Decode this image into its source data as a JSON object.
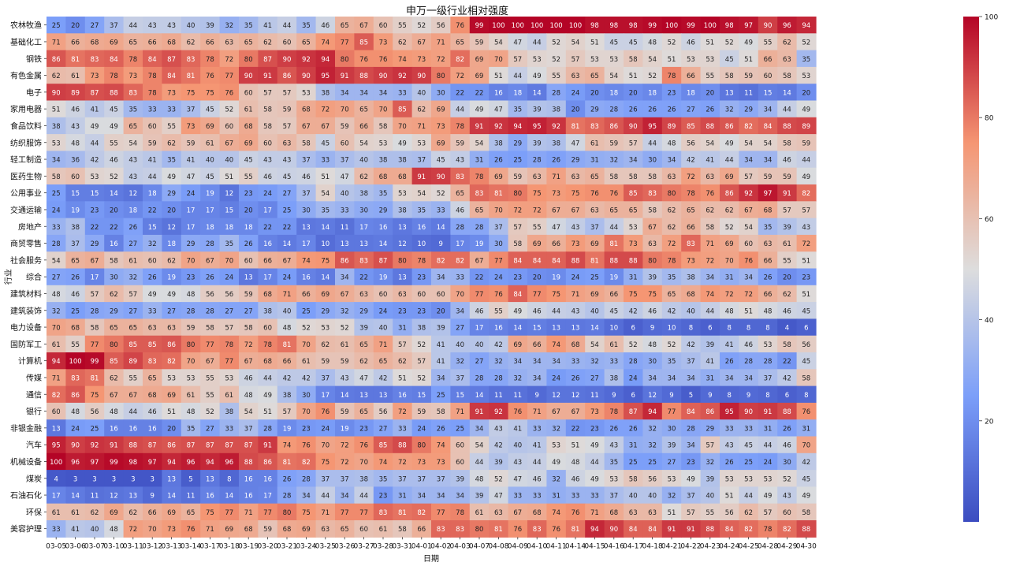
{
  "chart_data": {
    "type": "heatmap",
    "title": "申万一级行业相对强度",
    "xlabel": "日期",
    "ylabel": "行业",
    "x": [
      "03-05",
      "03-06",
      "03-07",
      "03-10",
      "03-11",
      "03-12",
      "03-13",
      "03-14",
      "03-17",
      "03-18",
      "03-19",
      "03-20",
      "03-21",
      "03-24",
      "03-25",
      "03-26",
      "03-27",
      "03-28",
      "03-31",
      "04-01",
      "04-02",
      "04-03",
      "04-07",
      "04-08",
      "04-09",
      "04-10",
      "04-11",
      "04-14",
      "04-15",
      "04-16",
      "04-17",
      "04-18",
      "04-21",
      "04-22",
      "04-23",
      "04-24",
      "04-25",
      "04-28",
      "04-29",
      "04-30"
    ],
    "y": [
      "农林牧渔",
      "基础化工",
      "钢铁",
      "有色金属",
      "电子",
      "家用电器",
      "食品饮料",
      "纺织服饰",
      "轻工制造",
      "医药生物",
      "公用事业",
      "交通运输",
      "房地产",
      "商贸零售",
      "社会服务",
      "综合",
      "建筑材料",
      "建筑装饰",
      "电力设备",
      "国防军工",
      "计算机",
      "传媒",
      "通信",
      "银行",
      "非银金融",
      "汽车",
      "机械设备",
      "煤炭",
      "石油石化",
      "环保",
      "美容护理"
    ],
    "values": [
      [
        25,
        20,
        27,
        37,
        44,
        43,
        43,
        40,
        39,
        32,
        35,
        41,
        44,
        35,
        46,
        65,
        67,
        60,
        55,
        52,
        56,
        76,
        99,
        100,
        100,
        100,
        100,
        100,
        98,
        98,
        98,
        99,
        100,
        99,
        100,
        98,
        97,
        90,
        96,
        94
      ],
      [
        71,
        66,
        68,
        69,
        65,
        66,
        68,
        62,
        66,
        63,
        65,
        62,
        60,
        65,
        74,
        77,
        85,
        73,
        62,
        67,
        71,
        65,
        59,
        54,
        47,
        44,
        52,
        54,
        51,
        45,
        45,
        48,
        52,
        46,
        51,
        52,
        49,
        55,
        62,
        52
      ],
      [
        86,
        81,
        83,
        84,
        78,
        84,
        87,
        83,
        78,
        72,
        80,
        87,
        90,
        92,
        94,
        80,
        76,
        76,
        74,
        73,
        72,
        82,
        69,
        70,
        57,
        53,
        52,
        57,
        53,
        53,
        58,
        54,
        51,
        53,
        53,
        45,
        51,
        66,
        63,
        35
      ],
      [
        62,
        61,
        73,
        78,
        73,
        78,
        84,
        81,
        76,
        77,
        90,
        91,
        86,
        90,
        95,
        91,
        88,
        90,
        92,
        90,
        80,
        72,
        69,
        51,
        44,
        49,
        55,
        63,
        65,
        54,
        51,
        52,
        78,
        66,
        55,
        58,
        59,
        60,
        58,
        53
      ],
      [
        90,
        89,
        87,
        88,
        83,
        78,
        73,
        75,
        75,
        76,
        60,
        57,
        57,
        53,
        38,
        34,
        34,
        34,
        33,
        40,
        30,
        22,
        22,
        16,
        18,
        14,
        28,
        24,
        20,
        18,
        20,
        18,
        23,
        18,
        20,
        13,
        11,
        15,
        14,
        20
      ],
      [
        51,
        46,
        41,
        45,
        35,
        33,
        33,
        37,
        45,
        52,
        61,
        58,
        59,
        68,
        72,
        70,
        65,
        70,
        85,
        62,
        69,
        44,
        49,
        47,
        35,
        39,
        38,
        20,
        29,
        28,
        26,
        26,
        26,
        27,
        26,
        32,
        29,
        34,
        44,
        49
      ],
      [
        38,
        43,
        49,
        49,
        65,
        60,
        55,
        73,
        69,
        60,
        68,
        58,
        57,
        67,
        67,
        59,
        66,
        58,
        70,
        71,
        73,
        78,
        91,
        92,
        94,
        95,
        92,
        81,
        83,
        86,
        90,
        95,
        89,
        85,
        88,
        86,
        82,
        84,
        88,
        89
      ],
      [
        53,
        48,
        44,
        55,
        54,
        59,
        62,
        59,
        61,
        67,
        69,
        60,
        63,
        58,
        45,
        60,
        54,
        53,
        49,
        53,
        69,
        59,
        54,
        38,
        29,
        39,
        38,
        47,
        61,
        59,
        57,
        44,
        48,
        56,
        54,
        49,
        54,
        54,
        58,
        59
      ],
      [
        34,
        36,
        42,
        46,
        43,
        41,
        35,
        41,
        40,
        40,
        45,
        43,
        43,
        37,
        33,
        37,
        40,
        38,
        38,
        37,
        45,
        43,
        31,
        26,
        25,
        28,
        26,
        29,
        31,
        32,
        34,
        30,
        34,
        42,
        41,
        44,
        34,
        34,
        46,
        44
      ],
      [
        58,
        60,
        53,
        52,
        43,
        44,
        49,
        47,
        45,
        51,
        55,
        46,
        45,
        46,
        51,
        47,
        62,
        68,
        68,
        91,
        90,
        83,
        78,
        69,
        59,
        63,
        71,
        63,
        65,
        58,
        58,
        58,
        63,
        72,
        63,
        69,
        57,
        59,
        59,
        49
      ],
      [
        25,
        15,
        15,
        14,
        12,
        18,
        29,
        24,
        19,
        12,
        23,
        24,
        27,
        37,
        54,
        40,
        38,
        35,
        53,
        54,
        52,
        65,
        83,
        81,
        80,
        75,
        73,
        75,
        76,
        76,
        85,
        83,
        80,
        78,
        76,
        86,
        92,
        97,
        91,
        82
      ],
      [
        24,
        19,
        23,
        20,
        18,
        22,
        20,
        17,
        17,
        15,
        20,
        17,
        25,
        30,
        35,
        33,
        30,
        29,
        38,
        35,
        33,
        46,
        65,
        70,
        72,
        72,
        67,
        67,
        63,
        65,
        65,
        58,
        62,
        65,
        62,
        62,
        67,
        68,
        57,
        57
      ],
      [
        33,
        38,
        22,
        22,
        26,
        15,
        12,
        17,
        18,
        18,
        18,
        22,
        22,
        13,
        14,
        11,
        17,
        16,
        13,
        16,
        14,
        28,
        28,
        37,
        57,
        55,
        47,
        43,
        37,
        44,
        53,
        67,
        62,
        66,
        58,
        52,
        54,
        35,
        39,
        43
      ],
      [
        28,
        37,
        29,
        16,
        27,
        32,
        18,
        29,
        28,
        35,
        26,
        16,
        14,
        17,
        10,
        13,
        13,
        14,
        12,
        10,
        9,
        17,
        19,
        30,
        58,
        69,
        66,
        73,
        69,
        81,
        73,
        63,
        72,
        83,
        71,
        69,
        60,
        63,
        61,
        72
      ],
      [
        54,
        65,
        67,
        58,
        61,
        60,
        62,
        70,
        67,
        70,
        60,
        66,
        67,
        74,
        75,
        86,
        83,
        87,
        80,
        78,
        82,
        82,
        67,
        77,
        84,
        84,
        84,
        88,
        81,
        88,
        88,
        80,
        78,
        73,
        72,
        70,
        76,
        66,
        55,
        51
      ],
      [
        27,
        26,
        17,
        30,
        32,
        26,
        19,
        23,
        26,
        24,
        13,
        17,
        24,
        16,
        14,
        34,
        22,
        19,
        13,
        23,
        34,
        33,
        22,
        24,
        23,
        20,
        19,
        24,
        25,
        19,
        31,
        39,
        35,
        38,
        34,
        31,
        34,
        26,
        20,
        23
      ],
      [
        48,
        46,
        57,
        62,
        57,
        49,
        49,
        48,
        56,
        56,
        59,
        68,
        71,
        66,
        69,
        67,
        63,
        60,
        63,
        60,
        60,
        70,
        77,
        76,
        84,
        77,
        75,
        71,
        69,
        66,
        75,
        75,
        65,
        68,
        74,
        72,
        72,
        66,
        62,
        51
      ],
      [
        32,
        25,
        28,
        29,
        27,
        33,
        27,
        28,
        28,
        27,
        27,
        38,
        40,
        25,
        29,
        32,
        29,
        24,
        23,
        23,
        20,
        34,
        46,
        55,
        49,
        46,
        44,
        43,
        40,
        45,
        42,
        46,
        42,
        40,
        44,
        48,
        51,
        48,
        46,
        45
      ],
      [
        70,
        68,
        58,
        65,
        65,
        63,
        63,
        59,
        58,
        57,
        58,
        60,
        48,
        52,
        53,
        52,
        39,
        40,
        31,
        38,
        39,
        27,
        17,
        16,
        14,
        15,
        13,
        13,
        14,
        10,
        6,
        9,
        10,
        8,
        6,
        8,
        8,
        8,
        4,
        6
      ],
      [
        61,
        55,
        77,
        80,
        85,
        85,
        86,
        80,
        77,
        78,
        72,
        78,
        81,
        70,
        62,
        61,
        65,
        71,
        57,
        52,
        41,
        40,
        40,
        42,
        69,
        66,
        74,
        68,
        54,
        61,
        52,
        48,
        52,
        42,
        39,
        41,
        46,
        53,
        58,
        56
      ],
      [
        94,
        100,
        99,
        85,
        89,
        83,
        82,
        70,
        67,
        77,
        67,
        68,
        66,
        61,
        59,
        59,
        62,
        65,
        62,
        57,
        41,
        32,
        27,
        32,
        34,
        34,
        34,
        33,
        32,
        33,
        28,
        30,
        35,
        37,
        41,
        26,
        28,
        28,
        22,
        45
      ],
      [
        71,
        83,
        81,
        62,
        55,
        65,
        53,
        53,
        55,
        53,
        46,
        44,
        42,
        42,
        37,
        43,
        47,
        42,
        51,
        52,
        34,
        37,
        28,
        28,
        32,
        34,
        24,
        26,
        27,
        38,
        24,
        34,
        34,
        34,
        31,
        34,
        34,
        37,
        42,
        58
      ],
      [
        82,
        86,
        75,
        67,
        67,
        68,
        69,
        61,
        55,
        61,
        48,
        49,
        38,
        30,
        17,
        14,
        13,
        13,
        16,
        15,
        25,
        15,
        14,
        11,
        11,
        9,
        12,
        12,
        11,
        9,
        6,
        12,
        9,
        5,
        9,
        8,
        9,
        8,
        6,
        8
      ],
      [
        60,
        48,
        56,
        48,
        44,
        46,
        51,
        48,
        52,
        38,
        54,
        51,
        57,
        70,
        76,
        59,
        65,
        56,
        72,
        59,
        58,
        71,
        91,
        92,
        76,
        71,
        67,
        67,
        73,
        78,
        87,
        94,
        77,
        84,
        86,
        95,
        90,
        91,
        88,
        76
      ],
      [
        13,
        24,
        25,
        16,
        16,
        16,
        20,
        35,
        27,
        33,
        37,
        28,
        19,
        23,
        24,
        19,
        23,
        27,
        33,
        24,
        26,
        25,
        34,
        43,
        41,
        33,
        32,
        22,
        23,
        26,
        26,
        32,
        30,
        28,
        29,
        33,
        33,
        31,
        26,
        31
      ],
      [
        95,
        90,
        92,
        91,
        88,
        87,
        86,
        87,
        87,
        87,
        87,
        91,
        74,
        76,
        70,
        72,
        76,
        85,
        88,
        80,
        74,
        60,
        54,
        42,
        40,
        41,
        53,
        51,
        49,
        43,
        31,
        32,
        39,
        34,
        57,
        43,
        45,
        44,
        46,
        70
      ],
      [
        100,
        96,
        97,
        99,
        98,
        97,
        94,
        96,
        94,
        96,
        88,
        86,
        81,
        82,
        75,
        72,
        70,
        74,
        72,
        73,
        73,
        60,
        44,
        39,
        43,
        44,
        49,
        48,
        44,
        35,
        25,
        25,
        27,
        23,
        32,
        26,
        25,
        24,
        30,
        42
      ],
      [
        4,
        3,
        3,
        3,
        3,
        3,
        13,
        5,
        13,
        8,
        16,
        16,
        26,
        28,
        37,
        37,
        38,
        35,
        37,
        37,
        37,
        39,
        48,
        52,
        47,
        46,
        32,
        46,
        49,
        53,
        58,
        56,
        53,
        49,
        39,
        53,
        53,
        53,
        52,
        45
      ],
      [
        17,
        14,
        11,
        12,
        13,
        9,
        14,
        11,
        16,
        14,
        16,
        17,
        28,
        34,
        44,
        34,
        44,
        23,
        31,
        34,
        34,
        34,
        39,
        47,
        33,
        33,
        31,
        33,
        33,
        37,
        40,
        40,
        32,
        37,
        40,
        51,
        44,
        49,
        43,
        49
      ],
      [
        61,
        61,
        62,
        69,
        62,
        66,
        69,
        65,
        75,
        77,
        71,
        77,
        80,
        75,
        71,
        77,
        77,
        83,
        81,
        82,
        77,
        78,
        61,
        63,
        67,
        68,
        74,
        76,
        71,
        68,
        63,
        63,
        51,
        57,
        55,
        56,
        62,
        57,
        60,
        58
      ],
      [
        33,
        41,
        40,
        48,
        72,
        70,
        73,
        76,
        71,
        69,
        68,
        59,
        68,
        69,
        63,
        65,
        60,
        61,
        58,
        66,
        83,
        83,
        80,
        81,
        76,
        83,
        76,
        81,
        94,
        90,
        84,
        84,
        91,
        91,
        88,
        84,
        82,
        78,
        82,
        88
      ]
    ],
    "colormap": "coolwarm",
    "color_low": "#3b4cc0",
    "color_mid": "#dddddd",
    "color_high": "#b40426",
    "vmin": 0,
    "vmax": 100,
    "colorbar_ticks": [
      20,
      40,
      60,
      80,
      100
    ],
    "annot": true,
    "colorbar_position": "right"
  }
}
